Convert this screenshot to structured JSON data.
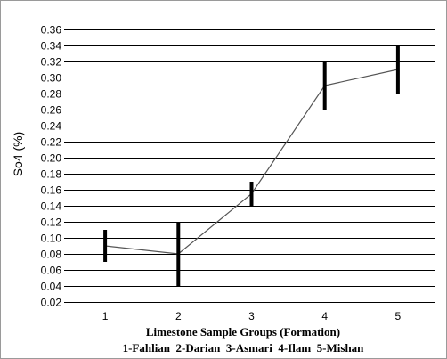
{
  "chart_data": {
    "type": "line",
    "ylabel": "So4 (%)",
    "xlabel": "Limestone Sample Groups (Formation)",
    "caption": "1-Fahlian  2-Darian  3-Asmari  4-Ilam  5-Mishan",
    "categories": [
      "1",
      "2",
      "3",
      "4",
      "5"
    ],
    "ylim": [
      0.02,
      0.36
    ],
    "ytick_step": 0.02,
    "ytick_labels": [
      "0.02",
      "0.04",
      "0.06",
      "0.08",
      "0.10",
      "0.12",
      "0.14",
      "0.16",
      "0.18",
      "0.20",
      "0.22",
      "0.24",
      "0.26",
      "0.28",
      "0.30",
      "0.32",
      "0.34",
      "0.36"
    ],
    "grid": true,
    "series": [
      {
        "values": [
          0.09,
          0.08,
          0.155,
          0.29,
          0.31
        ],
        "low": [
          0.07,
          0.04,
          0.14,
          0.26,
          0.28
        ],
        "high": [
          0.11,
          0.12,
          0.17,
          0.32,
          0.34
        ]
      }
    ],
    "colors": {
      "line": "#555555",
      "range_bar": "#000000",
      "grid": "#000000"
    }
  }
}
